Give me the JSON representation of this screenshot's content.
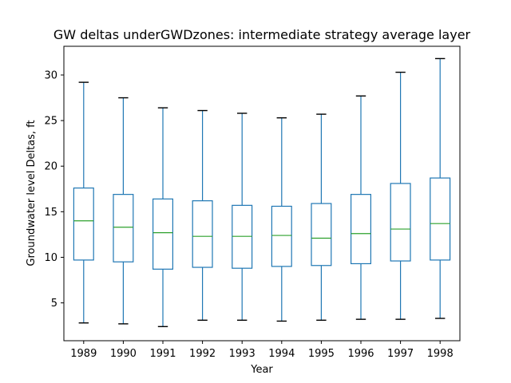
{
  "chart_data": {
    "type": "box",
    "title": "GW deltas underGWDzones: intermediate strategy average layer",
    "xlabel": "Year",
    "ylabel": "Groundwater level Deltas, ft",
    "ylim": [
      0.85,
      33.15
    ],
    "yticks": [
      5,
      10,
      15,
      20,
      25,
      30
    ],
    "grid": false,
    "categories": [
      "1989",
      "1990",
      "1991",
      "1992",
      "1993",
      "1994",
      "1995",
      "1996",
      "1997",
      "1998"
    ],
    "boxes": [
      {
        "whisker_low": 2.8,
        "q1": 9.7,
        "median": 14.0,
        "q3": 17.6,
        "whisker_high": 29.2
      },
      {
        "whisker_low": 2.7,
        "q1": 9.5,
        "median": 13.3,
        "q3": 16.9,
        "whisker_high": 27.5
      },
      {
        "whisker_low": 2.4,
        "q1": 8.7,
        "median": 12.7,
        "q3": 16.4,
        "whisker_high": 26.4
      },
      {
        "whisker_low": 3.1,
        "q1": 8.9,
        "median": 12.3,
        "q3": 16.2,
        "whisker_high": 26.1
      },
      {
        "whisker_low": 3.1,
        "q1": 8.8,
        "median": 12.3,
        "q3": 15.7,
        "whisker_high": 25.8
      },
      {
        "whisker_low": 3.0,
        "q1": 9.0,
        "median": 12.4,
        "q3": 15.6,
        "whisker_high": 25.3
      },
      {
        "whisker_low": 3.1,
        "q1": 9.1,
        "median": 12.1,
        "q3": 15.9,
        "whisker_high": 25.7
      },
      {
        "whisker_low": 3.2,
        "q1": 9.3,
        "median": 12.6,
        "q3": 16.9,
        "whisker_high": 27.7
      },
      {
        "whisker_low": 3.2,
        "q1": 9.6,
        "median": 13.1,
        "q3": 18.1,
        "whisker_high": 30.3
      },
      {
        "whisker_low": 3.3,
        "q1": 9.7,
        "median": 13.7,
        "q3": 18.7,
        "whisker_high": 31.8
      }
    ],
    "colors": {
      "box": "#1f77b4",
      "median": "#2ca02c",
      "whisker": "#1f77b4",
      "cap": "#000000"
    }
  }
}
